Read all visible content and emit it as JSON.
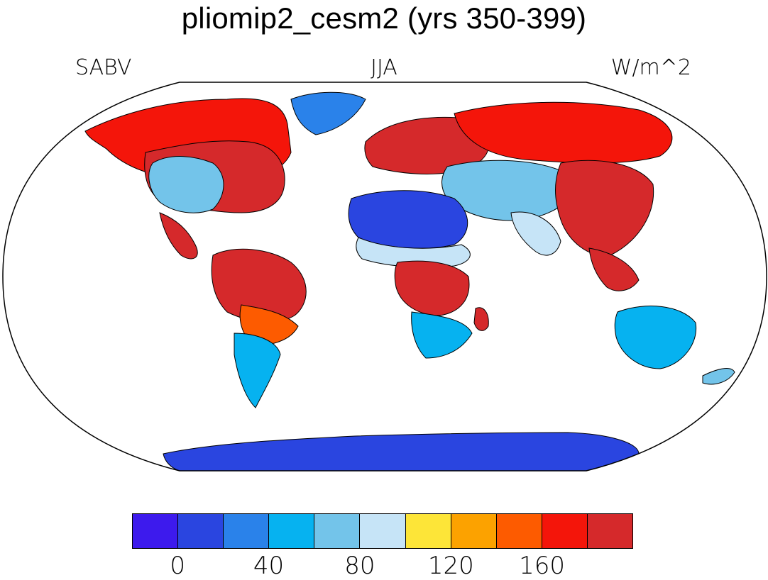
{
  "title": "pliomip2_cesm2 (yrs 350-399)",
  "subtitles": {
    "left": "SABV",
    "center": "JJA",
    "right": "W/m^2"
  },
  "colorbar": {
    "colors": [
      "#3d1aed",
      "#2a45e0",
      "#2a82ea",
      "#06b2f0",
      "#73c4ea",
      "#c6e4f7",
      "#fde538",
      "#fca200",
      "#fd5b00",
      "#f4150a",
      "#d5292b"
    ],
    "tick_labels": [
      "0",
      "40",
      "80",
      "120",
      "160"
    ]
  },
  "map": {
    "projection": "Robinson",
    "ocean_color": "#ffffff",
    "land_mask_color": "#ffffff",
    "regions": [
      {
        "name": "North America north",
        "level": 9
      },
      {
        "name": "North America central",
        "level": 10
      },
      {
        "name": "US southwest",
        "level": 4
      },
      {
        "name": "Greenland",
        "level": 2
      },
      {
        "name": "Europe",
        "level": 10
      },
      {
        "name": "Siberia",
        "level": 9
      },
      {
        "name": "Central Asia",
        "level": 4
      },
      {
        "name": "East Asia",
        "level": 10
      },
      {
        "name": "Sahara",
        "level": 1
      },
      {
        "name": "Central Africa",
        "level": 10
      },
      {
        "name": "Southern Africa",
        "level": 3
      },
      {
        "name": "Amazon",
        "level": 10
      },
      {
        "name": "Patagonia",
        "level": 3
      },
      {
        "name": "Australia",
        "level": 3
      },
      {
        "name": "Antarctica",
        "level": 1
      }
    ]
  }
}
